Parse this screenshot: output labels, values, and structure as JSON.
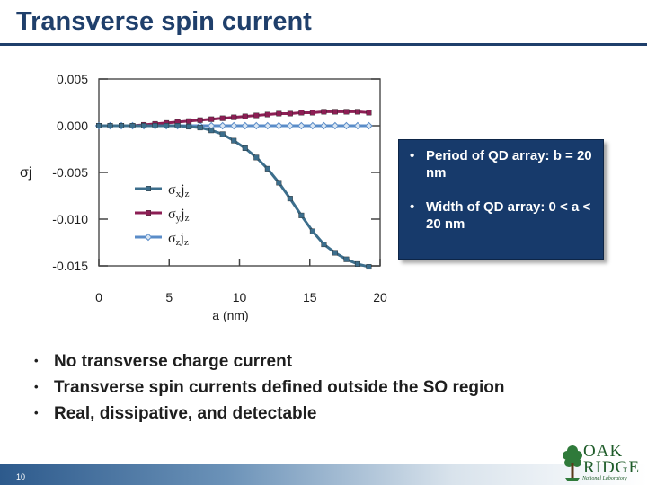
{
  "title": "Transverse spin current",
  "chart_data": {
    "type": "line",
    "ylabel": "σj",
    "xlabel": "a (nm)",
    "xlim": [
      0,
      20
    ],
    "ylim": [
      -0.015,
      0.005
    ],
    "xticks": [
      0,
      5,
      10,
      15,
      20
    ],
    "yticks": [
      0.005,
      0.0,
      -0.005,
      -0.01,
      -0.015
    ],
    "ytick_labels": [
      "0.005",
      "0.000",
      "-0.005",
      "-0.010",
      "-0.015"
    ],
    "legend_position": "center",
    "series": [
      {
        "name": "σxjz",
        "legend_main": "σ",
        "legend_sub": "x",
        "legend_var": "j",
        "legend_var_sub": "z",
        "color": "#3c6e8c",
        "marker": "square",
        "x": [
          0,
          0.8,
          1.6,
          2.4,
          3.2,
          4.0,
          4.8,
          5.6,
          6.4,
          7.2,
          8.0,
          8.8,
          9.6,
          10.4,
          11.2,
          12.0,
          12.8,
          13.6,
          14.4,
          15.2,
          16.0,
          16.8,
          17.6,
          18.4,
          19.2
        ],
        "y": [
          0,
          0,
          0,
          0,
          0,
          0,
          0,
          0,
          -0.0001,
          -0.0002,
          -0.0005,
          -0.0009,
          -0.0016,
          -0.0024,
          -0.0034,
          -0.0046,
          -0.0061,
          -0.0078,
          -0.0096,
          -0.0113,
          -0.0127,
          -0.0136,
          -0.0143,
          -0.0148,
          -0.0151
        ]
      },
      {
        "name": "σyjz",
        "legend_main": "σ",
        "legend_sub": "y",
        "legend_var": "j",
        "legend_var_sub": "z",
        "color": "#8c1e54",
        "marker": "square",
        "x": [
          0,
          0.8,
          1.6,
          2.4,
          3.2,
          4.0,
          4.8,
          5.6,
          6.4,
          7.2,
          8.0,
          8.8,
          9.6,
          10.4,
          11.2,
          12.0,
          12.8,
          13.6,
          14.4,
          15.2,
          16.0,
          16.8,
          17.6,
          18.4,
          19.2
        ],
        "y": [
          0,
          0,
          0,
          0,
          0.0001,
          0.0002,
          0.0003,
          0.0004,
          0.0005,
          0.0006,
          0.0007,
          0.0008,
          0.0009,
          0.001,
          0.0011,
          0.0012,
          0.0013,
          0.0013,
          0.0014,
          0.0014,
          0.0015,
          0.0015,
          0.0015,
          0.0015,
          0.0014
        ]
      },
      {
        "name": "σzjz",
        "legend_main": "σ",
        "legend_sub": "z",
        "legend_var": "j",
        "legend_var_sub": "z",
        "color": "#5a8cc8",
        "marker": "diamond",
        "x": [
          0,
          0.8,
          1.6,
          2.4,
          3.2,
          4.0,
          4.8,
          5.6,
          6.4,
          7.2,
          8.0,
          8.8,
          9.6,
          10.4,
          11.2,
          12.0,
          12.8,
          13.6,
          14.4,
          15.2,
          16.0,
          16.8,
          17.6,
          18.4,
          19.2
        ],
        "y": [
          0,
          0,
          0,
          0,
          0,
          0,
          0,
          0,
          0,
          0,
          0,
          0,
          0,
          0,
          0,
          0,
          0,
          0,
          0,
          0,
          0,
          0,
          0,
          0,
          0
        ]
      }
    ]
  },
  "callout": {
    "items": [
      {
        "bullet": "•",
        "text": "Period of QD array: b = 20 nm"
      },
      {
        "bullet": "•",
        "text": "Width of QD array: 0 < a < 20 nm"
      }
    ],
    "bg_color": "#173a6b"
  },
  "bullets": [
    {
      "bullet": "•",
      "text": "No transverse charge current"
    },
    {
      "bullet": "•",
      "text": "Transverse spin currents defined outside the SO region"
    },
    {
      "bullet": "•",
      "text": "Real, dissipative, and detectable"
    }
  ],
  "footer": {
    "page_number": "10"
  },
  "logo": {
    "line1": "OAK",
    "line2": "RIDGE",
    "line3": "National Laboratory",
    "icon": "oak-tree-icon",
    "color": "#1f5c2a"
  }
}
